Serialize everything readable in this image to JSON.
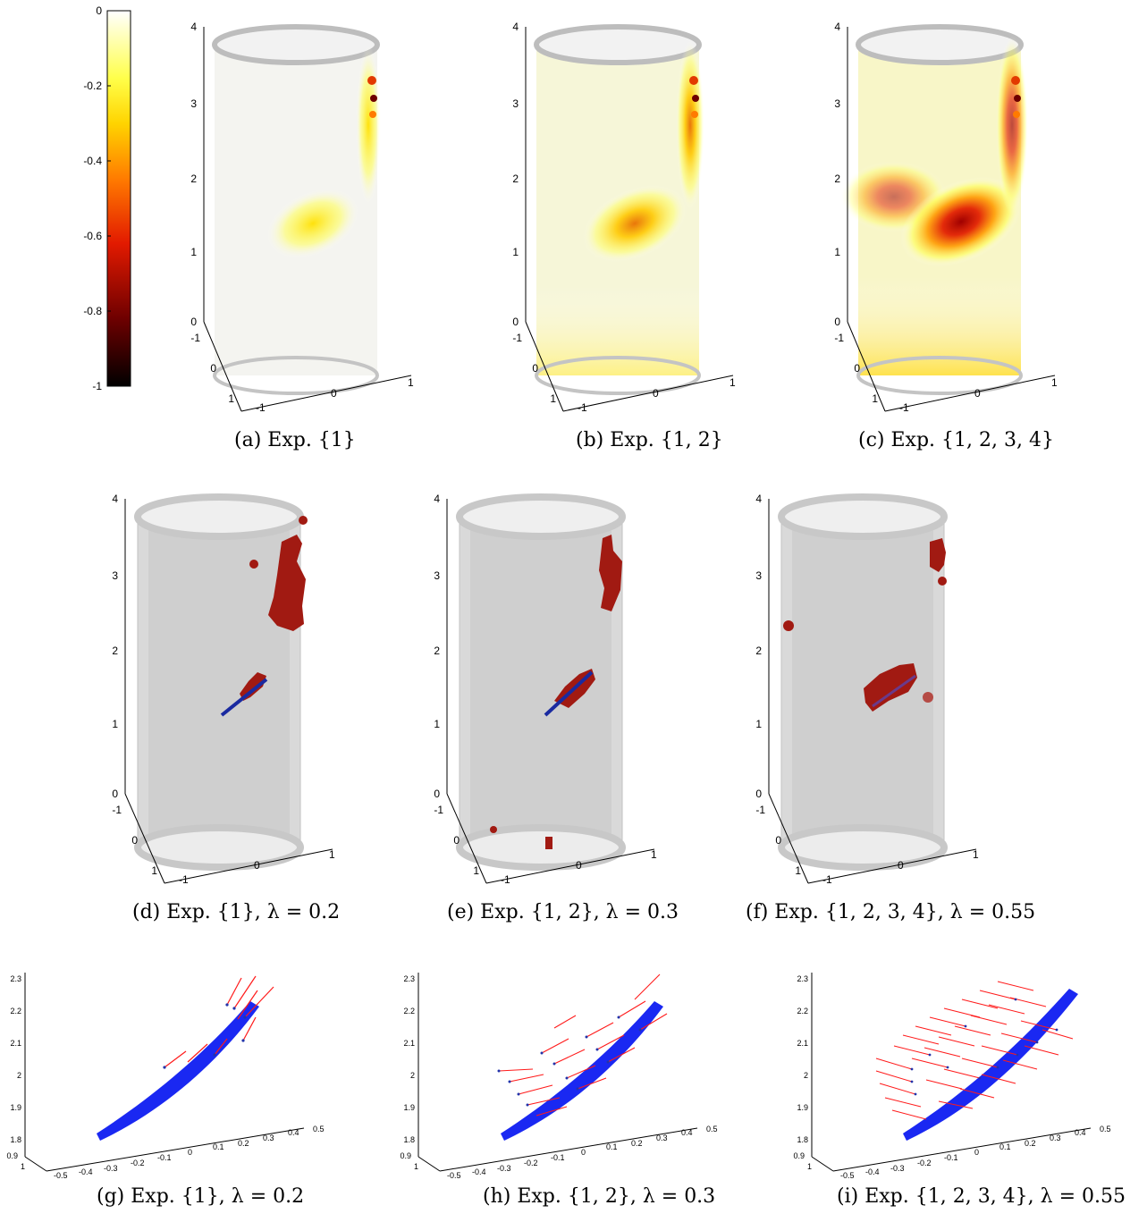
{
  "colorbar": {
    "ticks": [
      "0",
      "-0.2",
      "-0.4",
      "-0.6",
      "-0.8",
      "-1"
    ],
    "range": [
      -1,
      0
    ],
    "colormap": "hot",
    "stops": [
      "#000000",
      "#6e0000",
      "#e21a00",
      "#ff7a00",
      "#ffd400",
      "#ffff4a",
      "#ffffff"
    ]
  },
  "colors": {
    "tube_gray": "#c8c8c8",
    "blob_red": "#a11a12",
    "surface_blue": "#1a28f2",
    "arrow_red": "#ff1a1a",
    "point_blue": "#2233aa"
  },
  "axes3d": {
    "z_ticks": [
      "0",
      "1",
      "2",
      "3",
      "4"
    ],
    "y_ticks": [
      "-1",
      "0",
      "1"
    ],
    "x_ticks": [
      "-1",
      "0",
      "1"
    ]
  },
  "zoom_axes": {
    "z_ticks": [
      "1.8",
      "1.9",
      "2",
      "2.1",
      "2.2",
      "2.3"
    ],
    "z_bottom": "0.9",
    "y_bottom": "1",
    "x_ticks": [
      "-0.5",
      "-0.4",
      "-0.3",
      "-0.2",
      "-0.1",
      "0",
      "0.1",
      "0.2",
      "0.3",
      "0.4",
      "0.5"
    ]
  },
  "captions": {
    "a": "(a) Exp. {1}",
    "b": "(b) Exp. {1, 2}",
    "c": "(c) Exp. {1, 2, 3, 4}",
    "d": "(d) Exp. {1}, λ = 0.2",
    "e": "(e) Exp. {1, 2}, λ = 0.3",
    "f": "(f) Exp. {1, 2, 3, 4}, λ = 0.55",
    "g": "(g) Exp. {1}, λ = 0.2",
    "h": "(h) Exp. {1, 2}, λ = 0.3",
    "i": "(i) Exp. {1, 2, 3, 4}, λ = 0.55"
  },
  "chart_data": [
    {
      "type": "heatmap",
      "panel": "a",
      "z_range": [
        0,
        4
      ],
      "xy_range": [
        -1,
        1
      ],
      "min_value_shown": -0.3
    },
    {
      "type": "heatmap",
      "panel": "b",
      "z_range": [
        0,
        4
      ],
      "xy_range": [
        -1,
        1
      ],
      "min_value_shown": -0.5
    },
    {
      "type": "heatmap",
      "panel": "c",
      "z_range": [
        0,
        4
      ],
      "xy_range": [
        -1,
        1
      ],
      "min_value_shown": -0.7
    },
    {
      "type": "scatter",
      "panel": "d",
      "lambda": 0.2,
      "z_range": [
        0,
        4
      ],
      "xy_range": [
        -1,
        1
      ]
    },
    {
      "type": "scatter",
      "panel": "e",
      "lambda": 0.3,
      "z_range": [
        0,
        4
      ],
      "xy_range": [
        -1,
        1
      ]
    },
    {
      "type": "scatter",
      "panel": "f",
      "lambda": 0.55,
      "z_range": [
        0,
        4
      ],
      "xy_range": [
        -1,
        1
      ]
    },
    {
      "type": "scatter",
      "panel": "g",
      "lambda": 0.2,
      "z_range": [
        1.8,
        2.3
      ],
      "x_range": [
        -0.5,
        0.5
      ]
    },
    {
      "type": "scatter",
      "panel": "h",
      "lambda": 0.3,
      "z_range": [
        1.8,
        2.3
      ],
      "x_range": [
        -0.5,
        0.5
      ]
    },
    {
      "type": "scatter",
      "panel": "i",
      "lambda": 0.55,
      "z_range": [
        1.8,
        2.3
      ],
      "x_range": [
        -0.5,
        0.5
      ]
    }
  ]
}
